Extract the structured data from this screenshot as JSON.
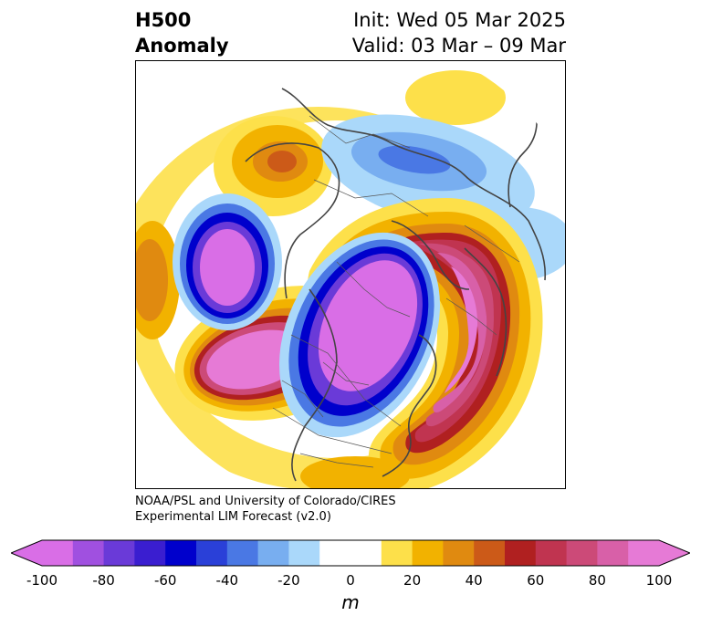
{
  "title": {
    "left_line1": "H500",
    "left_line2": "Anomaly",
    "right_line1": "Init: Wed 05 Mar 2025",
    "right_line2": "Valid: 03 Mar – 09 Mar"
  },
  "credit": {
    "line1": "NOAA/PSL and University of Colorado/CIRES",
    "line2": "Experimental LIM Forecast (v2.0)"
  },
  "colorbar": {
    "units": "m",
    "ticks": [
      "-100",
      "-80",
      "-60",
      "-40",
      "-20",
      "0",
      "20",
      "40",
      "60",
      "80",
      "100"
    ],
    "under_color": "#d96ee6",
    "over_color": "#e67ad6",
    "colors": [
      "#d96ee6",
      "#a050e0",
      "#6a3ad8",
      "#3a1ed0",
      "#0000cc",
      "#2a40d8",
      "#4a78e4",
      "#78aef0",
      "#aad8fa",
      "#ffffff",
      "#ffffff",
      "#fde04a",
      "#f2b200",
      "#e08a10",
      "#cc5a18",
      "#b02020",
      "#c03450",
      "#cc4a78",
      "#d860a8",
      "#e67ad6"
    ]
  },
  "map": {
    "projection": "north-polar-stereographic",
    "field": "500 hPa geopotential height anomaly"
  }
}
